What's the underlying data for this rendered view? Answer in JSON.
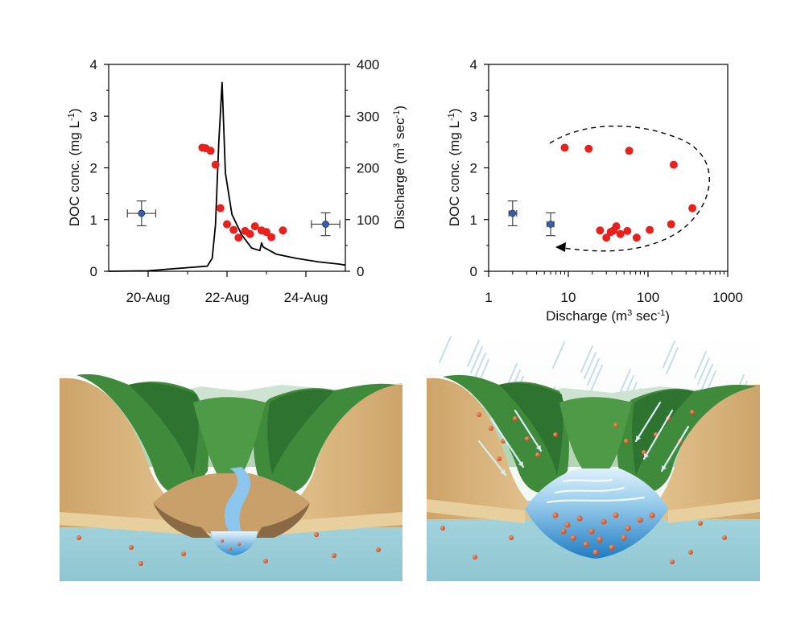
{
  "chart_data": [
    {
      "type": "line+scatter",
      "x_axis": {
        "type": "date",
        "range": [
          "2015-08-19",
          "2015-08-25"
        ],
        "tick_labels": [
          "20-Aug",
          "22-Aug",
          "24-Aug"
        ]
      },
      "y_left": {
        "label_main": "DOC conc. (mg L",
        "label_sup": "-1",
        "label_end": ")",
        "ylim": [
          0,
          4
        ],
        "ticks": [
          "0",
          "1",
          "2",
          "3",
          "4"
        ]
      },
      "y_right": {
        "label_main": "Discharge (m",
        "label_sup1": "3",
        "label_mid": " sec",
        "label_sup2": "-1",
        "label_end": ")",
        "ylim": [
          0,
          400
        ],
        "ticks": [
          "0",
          "100",
          "200",
          "300",
          "400"
        ]
      },
      "series": [
        {
          "kind": "scatter",
          "axis": "left",
          "color": "#e8211c",
          "points": [
            {
              "x": "2015-08-21T09:00",
              "y": 2.39
            },
            {
              "x": "2015-08-21T11:00",
              "y": 2.38
            },
            {
              "x": "2015-08-21T14:00",
              "y": 2.33
            },
            {
              "x": "2015-08-21T17:00",
              "y": 2.06
            },
            {
              "x": "2015-08-21T20:00",
              "y": 1.22
            },
            {
              "x": "2015-08-22T00:00",
              "y": 0.91
            },
            {
              "x": "2015-08-22T04:00",
              "y": 0.8
            },
            {
              "x": "2015-08-22T07:00",
              "y": 0.65
            },
            {
              "x": "2015-08-22T11:00",
              "y": 0.78
            },
            {
              "x": "2015-08-22T14:00",
              "y": 0.72
            },
            {
              "x": "2015-08-22T17:00",
              "y": 0.87
            },
            {
              "x": "2015-08-22T21:00",
              "y": 0.79
            },
            {
              "x": "2015-08-23T00:00",
              "y": 0.76
            },
            {
              "x": "2015-08-23T03:00",
              "y": 0.66
            },
            {
              "x": "2015-08-23T10:00",
              "y": 0.79
            }
          ]
        },
        {
          "kind": "errorbar",
          "axis": "left",
          "color": "#3b5fa8",
          "points": [
            {
              "x": "2015-08-19T20:00",
              "y": 1.12,
              "yerr": 0.24,
              "xerr_days": 0.36
            },
            {
              "x": "2015-08-24T12:00",
              "y": 0.91,
              "yerr": 0.22,
              "xerr_days": 0.36
            }
          ]
        },
        {
          "kind": "line",
          "axis": "right",
          "color": "#000000",
          "points": [
            {
              "x": "2015-08-19T00:00",
              "y": 0
            },
            {
              "x": "2015-08-20T00:00",
              "y": 1
            },
            {
              "x": "2015-08-20T12:00",
              "y": 4
            },
            {
              "x": "2015-08-21T00:00",
              "y": 7
            },
            {
              "x": "2015-08-21T12:00",
              "y": 10
            },
            {
              "x": "2015-08-21T15:00",
              "y": 25
            },
            {
              "x": "2015-08-21T17:00",
              "y": 90
            },
            {
              "x": "2015-08-21T19:00",
              "y": 250
            },
            {
              "x": "2015-08-21T21:00",
              "y": 365
            },
            {
              "x": "2015-08-21T23:00",
              "y": 190
            },
            {
              "x": "2015-08-22T03:00",
              "y": 110
            },
            {
              "x": "2015-08-22T09:00",
              "y": 70
            },
            {
              "x": "2015-08-22T15:00",
              "y": 45
            },
            {
              "x": "2015-08-22T20:00",
              "y": 40
            },
            {
              "x": "2015-08-22T21:00",
              "y": 55
            },
            {
              "x": "2015-08-22T22:00",
              "y": 47
            },
            {
              "x": "2015-08-23T06:00",
              "y": 33
            },
            {
              "x": "2015-08-23T18:00",
              "y": 25
            },
            {
              "x": "2015-08-24T08:00",
              "y": 18
            },
            {
              "x": "2015-08-24T20:00",
              "y": 14
            },
            {
              "x": "2015-08-25T00:00",
              "y": 12
            }
          ]
        }
      ]
    },
    {
      "type": "scatter",
      "x_axis": {
        "scale": "log",
        "range": [
          1,
          1000
        ],
        "ticks": [
          "1",
          "10",
          "100",
          "1000"
        ],
        "label_main": "Discharge (m",
        "label_sup1": "3",
        "label_mid": " sec",
        "label_sup2": "-1",
        "label_end": ")"
      },
      "y_left": {
        "label_main": "DOC conc. (mg L",
        "label_sup": "-1",
        "label_end": ")",
        "ylim": [
          0,
          4
        ],
        "ticks": [
          "0",
          "1",
          "2",
          "3",
          "4"
        ]
      },
      "series": [
        {
          "kind": "scatter",
          "color": "#e8211c",
          "points": [
            {
              "x": 9,
              "y": 2.39
            },
            {
              "x": 18,
              "y": 2.37
            },
            {
              "x": 58,
              "y": 2.33
            },
            {
              "x": 210,
              "y": 2.06
            },
            {
              "x": 360,
              "y": 1.22
            },
            {
              "x": 195,
              "y": 0.91
            },
            {
              "x": 105,
              "y": 0.8
            },
            {
              "x": 72,
              "y": 0.65
            },
            {
              "x": 55,
              "y": 0.78
            },
            {
              "x": 45,
              "y": 0.72
            },
            {
              "x": 40,
              "y": 0.87
            },
            {
              "x": 37,
              "y": 0.79
            },
            {
              "x": 34,
              "y": 0.76
            },
            {
              "x": 30,
              "y": 0.65
            },
            {
              "x": 25,
              "y": 0.79
            }
          ]
        },
        {
          "kind": "errorbar",
          "color": "#3b5fa8",
          "points": [
            {
              "x": 2,
              "y": 1.12,
              "yerr": 0.24,
              "xlow": 1.8,
              "xhigh": 2.25
            },
            {
              "x": 6,
              "y": 0.91,
              "yerr": 0.22,
              "xlow": 5.4,
              "xhigh": 6.6
            }
          ]
        }
      ],
      "annotation": "dashed clockwise hysteresis loop arrow"
    }
  ],
  "illustrations": [
    {
      "name": "baseflow-valley",
      "description_colors": {
        "soil": "#d9b57c",
        "groundwater": "#9ccfd9",
        "forest": "#3e8a3a",
        "stream": "#6fb5e6",
        "doc_particle": "#d8552b"
      }
    },
    {
      "name": "stormflow-valley",
      "description_colors": {
        "soil": "#d9b57c",
        "groundwater": "#9ccfd9",
        "forest": "#3e8a3a",
        "stream": "#6fb5e6",
        "doc_particle": "#d8552b",
        "rain": "#a9cfe0"
      }
    }
  ]
}
